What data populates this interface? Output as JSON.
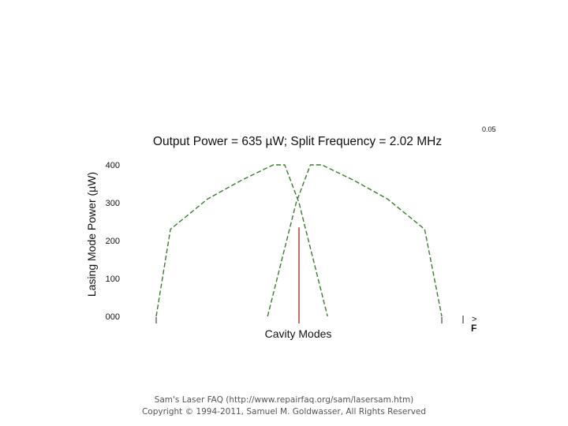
{
  "chart_data": {
    "type": "line",
    "title": "Output Power = 635 µW; Split Frequency = 2.02 MHz",
    "corner_label": "0.05",
    "xlabel": "Cavity Modes",
    "ylabel": "Lasing Mode Power (µW)",
    "ylim": [
      0,
      400
    ],
    "y_ticks": [
      "000",
      "100",
      "200",
      "300",
      "400"
    ],
    "x_range": [
      0,
      1
    ],
    "series": [
      {
        "color": "#3a7d2e",
        "style": "dashed",
        "points": [
          [
            0.0,
            0
          ],
          [
            0.05,
            230
          ],
          [
            0.18,
            310
          ],
          [
            0.3,
            360
          ],
          [
            0.41,
            400
          ],
          [
            0.45,
            400
          ],
          [
            0.5,
            300
          ],
          [
            0.56,
            120
          ],
          [
            0.6,
            0
          ]
        ]
      },
      {
        "color": "#3a7d2e",
        "style": "dashed",
        "points": [
          [
            0.39,
            0
          ],
          [
            0.43,
            120
          ],
          [
            0.49,
            300
          ],
          [
            0.54,
            400
          ],
          [
            0.58,
            400
          ],
          [
            0.69,
            360
          ],
          [
            0.81,
            310
          ],
          [
            0.94,
            230
          ],
          [
            1.0,
            0
          ]
        ]
      }
    ],
    "marker": {
      "x": 0.5,
      "value": 235,
      "color": "#b03020"
    },
    "x_tick_marks": [
      0.0,
      0.5,
      1.0
    ],
    "right_indicator": {
      "arrow": ">",
      "label": "F"
    }
  },
  "footer": {
    "line1": "Sam's Laser FAQ (http://www.repairfaq.org/sam/lasersam.htm)",
    "line2": "Copyright © 1994-2011, Samuel M. Goldwasser, All Rights Reserved"
  }
}
